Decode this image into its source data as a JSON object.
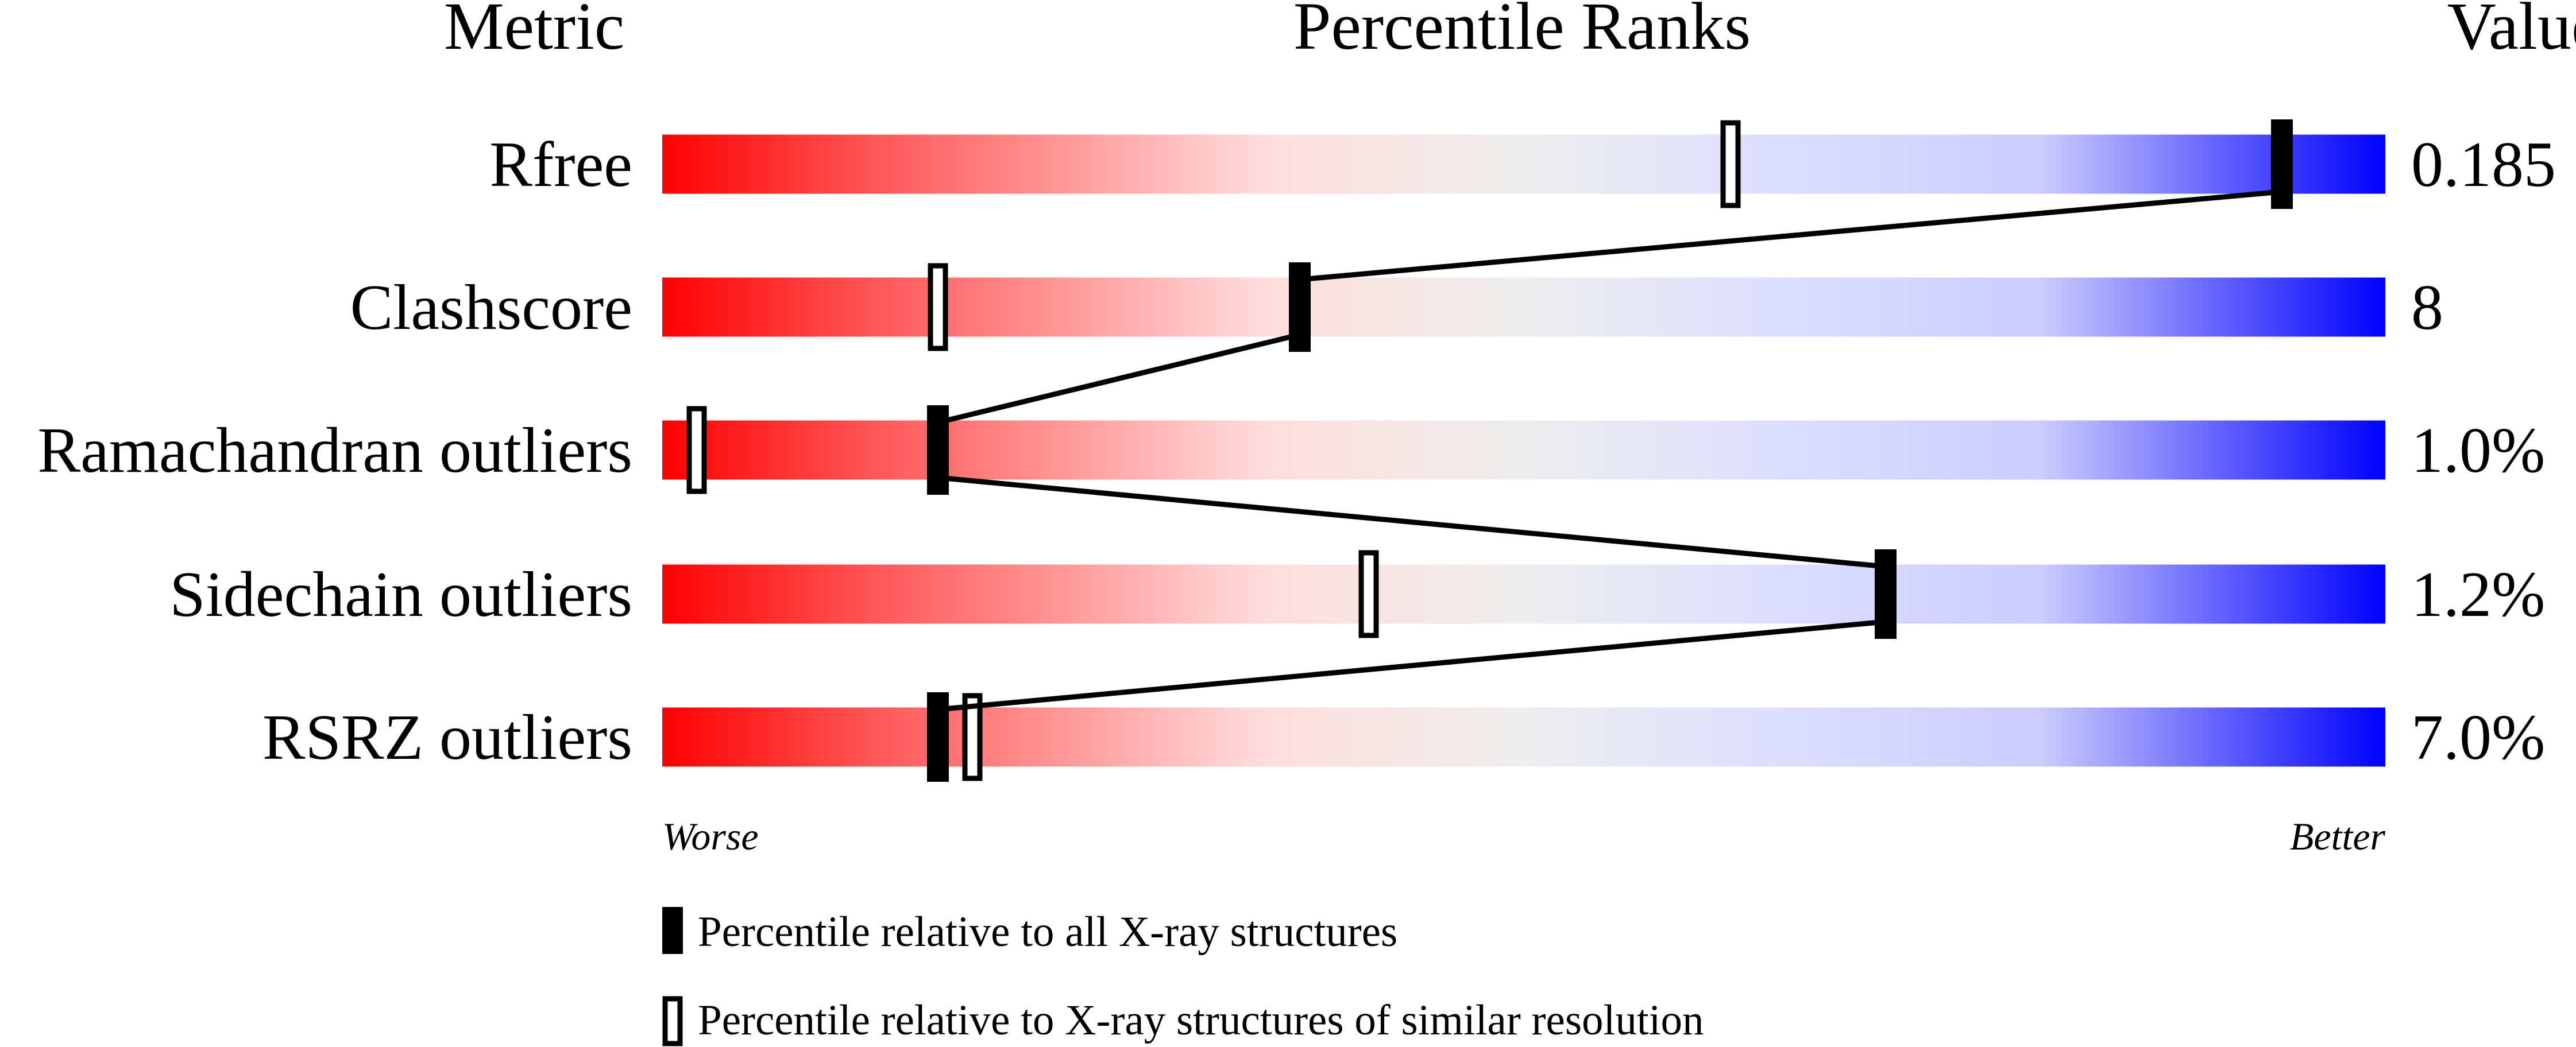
{
  "chart_data": {
    "type": "percentile-rank",
    "headers": {
      "metric": "Metric",
      "ranks": "Percentile Ranks",
      "value": "Value"
    },
    "xlim": [
      0,
      100
    ],
    "axis_labels": {
      "worse": "Worse",
      "better": "Better"
    },
    "colors": {
      "worse": "#ff0000",
      "middle": "#eeeeee",
      "better": "#0000ff"
    },
    "rows": [
      {
        "metric": "Rfree",
        "value": "0.185",
        "all_xray_percentile": 94,
        "similar_resolution_percentile": 62
      },
      {
        "metric": "Clashscore",
        "value": "8",
        "all_xray_percentile": 37,
        "similar_resolution_percentile": 16
      },
      {
        "metric": "Ramachandran outliers",
        "value": "1.0%",
        "all_xray_percentile": 16,
        "similar_resolution_percentile": 2
      },
      {
        "metric": "Sidechain outliers",
        "value": "1.2%",
        "all_xray_percentile": 71,
        "similar_resolution_percentile": 41
      },
      {
        "metric": "RSRZ outliers",
        "value": "7.0%",
        "all_xray_percentile": 16,
        "similar_resolution_percentile": 18
      }
    ],
    "legend": [
      {
        "marker": "filled",
        "label": "Percentile relative to all X-ray structures"
      },
      {
        "marker": "open",
        "label": "Percentile relative to X-ray structures of similar resolution"
      }
    ]
  }
}
